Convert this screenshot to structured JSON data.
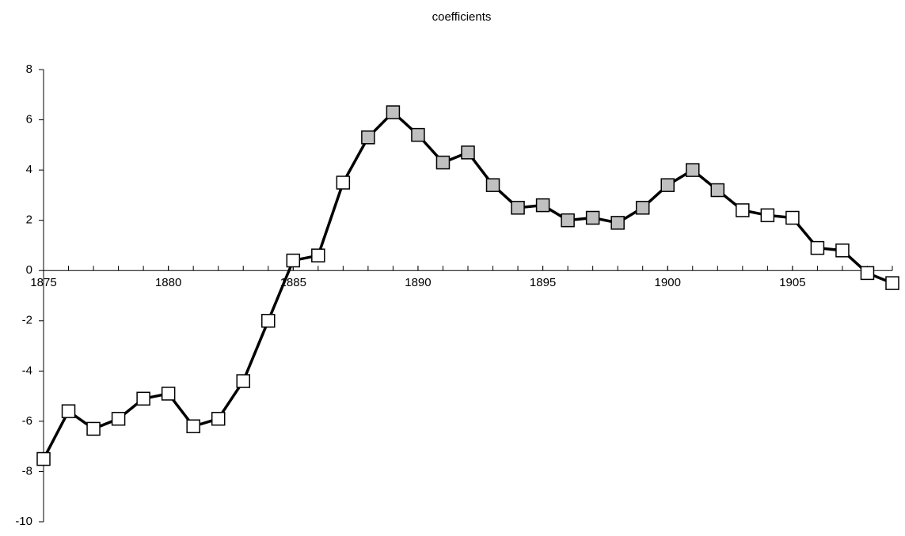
{
  "chart_data": {
    "type": "line",
    "title": "coefficients",
    "x": [
      1875,
      1876,
      1877,
      1878,
      1879,
      1880,
      1881,
      1882,
      1883,
      1884,
      1885,
      1886,
      1887,
      1888,
      1889,
      1890,
      1891,
      1892,
      1893,
      1894,
      1895,
      1896,
      1897,
      1898,
      1899,
      1900,
      1901,
      1902,
      1903,
      1904,
      1905,
      1906,
      1907,
      1908,
      1909
    ],
    "series": [
      {
        "color": "#000000",
        "values": [
          -7.5,
          -5.6,
          -6.3,
          -5.9,
          -5.1,
          -4.9,
          -6.2,
          -5.9,
          -4.4,
          -2.0,
          0.4,
          0.6,
          3.5,
          5.3,
          6.3,
          5.4,
          4.3,
          4.7,
          3.4,
          2.5,
          2.6,
          2.0,
          2.1,
          1.9,
          2.5,
          3.4,
          4.0,
          3.2,
          2.4,
          2.2,
          2.1,
          0.9,
          0.8,
          -0.1,
          -0.5
        ],
        "marker_colors": [
          "#ffffff",
          "#ffffff",
          "#ffffff",
          "#ffffff",
          "#ffffff",
          "#ffffff",
          "#ffffff",
          "#ffffff",
          "#ffffff",
          "#ffffff",
          "#ffffff",
          "#ffffff",
          "#ffffff",
          "#c0c0c0",
          "#c0c0c0",
          "#c0c0c0",
          "#c0c0c0",
          "#c0c0c0",
          "#c0c0c0",
          "#c0c0c0",
          "#c0c0c0",
          "#c0c0c0",
          "#c0c0c0",
          "#c0c0c0",
          "#c0c0c0",
          "#c0c0c0",
          "#c0c0c0",
          "#c0c0c0",
          "#ffffff",
          "#ffffff",
          "#ffffff",
          "#ffffff",
          "#ffffff",
          "#ffffff",
          "#ffffff"
        ]
      }
    ],
    "xlim": [
      1875,
      1909
    ],
    "xticks": [
      1875,
      1880,
      1885,
      1890,
      1895,
      1900,
      1905
    ],
    "ylim": [
      -10,
      8
    ],
    "yticks": [
      -10,
      -8,
      -6,
      -4,
      -2,
      0,
      2,
      4,
      6,
      8
    ]
  }
}
